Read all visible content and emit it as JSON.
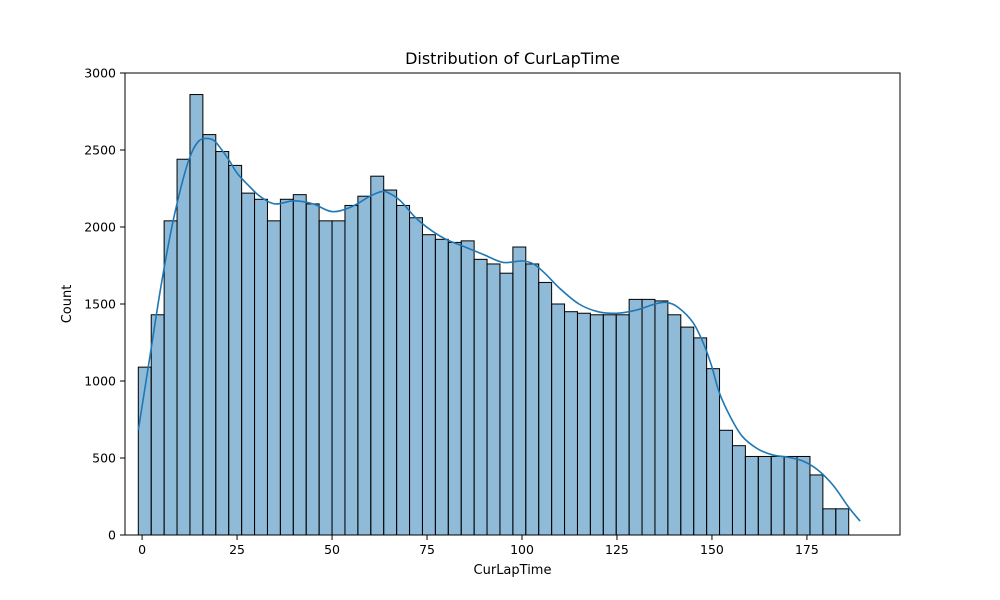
{
  "chart_data": {
    "type": "bar",
    "subtype": "histogram",
    "title": "Distribution of CurLapTime",
    "xlabel": "CurLapTime",
    "ylabel": "Count",
    "xlim": [
      -4.5,
      199.5
    ],
    "ylim": [
      0,
      3000
    ],
    "x_ticks": [
      0,
      25,
      50,
      75,
      100,
      125,
      150,
      175
    ],
    "y_ticks": [
      0,
      500,
      1000,
      1500,
      2000,
      2500,
      3000
    ],
    "grid": false,
    "bin_start": -1.0,
    "bin_width": 3.4,
    "counts": [
      1090,
      1430,
      2040,
      2440,
      2860,
      2600,
      2490,
      2400,
      2220,
      2180,
      2040,
      2180,
      2210,
      2150,
      2040,
      2040,
      2140,
      2200,
      2330,
      2240,
      2140,
      2060,
      1950,
      1920,
      1900,
      1910,
      1790,
      1760,
      1700,
      1870,
      1760,
      1640,
      1500,
      1450,
      1440,
      1430,
      1430,
      1430,
      1530,
      1530,
      1520,
      1430,
      1350,
      1280,
      1080,
      680,
      580,
      510,
      510,
      510,
      510,
      510,
      390,
      170,
      170
    ],
    "kde": {
      "x": [
        -1,
        2,
        5,
        8,
        11,
        13,
        15,
        17,
        19,
        21,
        23,
        25,
        28,
        31,
        35,
        40,
        45,
        50,
        55,
        60,
        63,
        65,
        68,
        72,
        76,
        80,
        85,
        90,
        95,
        100,
        103,
        106,
        110,
        115,
        120,
        125,
        130,
        135,
        138,
        141,
        145,
        148,
        150,
        152,
        155,
        158,
        162,
        166,
        170,
        174,
        178,
        182,
        186,
        189
      ],
      "y": [
        680,
        1150,
        1620,
        2020,
        2330,
        2480,
        2560,
        2575,
        2560,
        2500,
        2430,
        2350,
        2270,
        2200,
        2150,
        2170,
        2150,
        2100,
        2130,
        2200,
        2230,
        2220,
        2170,
        2060,
        1980,
        1920,
        1870,
        1820,
        1770,
        1780,
        1760,
        1700,
        1600,
        1500,
        1450,
        1440,
        1460,
        1500,
        1510,
        1480,
        1380,
        1230,
        1090,
        920,
        760,
        640,
        560,
        520,
        505,
        480,
        420,
        320,
        180,
        90
      ]
    },
    "bar_color": "#1f77b4",
    "kde_color": "#1f77b4"
  }
}
